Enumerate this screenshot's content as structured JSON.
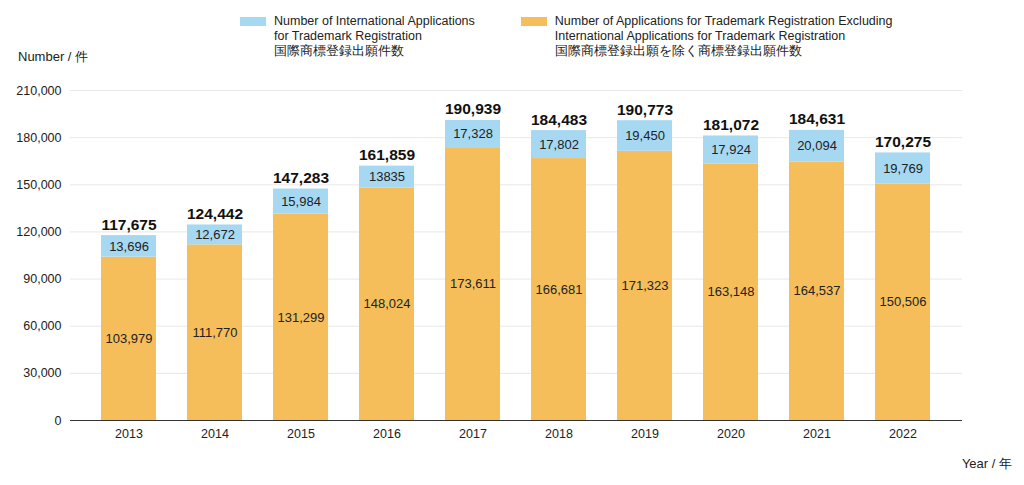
{
  "chart_data": {
    "type": "bar",
    "stacked": true,
    "data_labels": true,
    "grid": true,
    "ylabel": "Number / 件",
    "xlabel": "Year / 年",
    "categories": [
      "2013",
      "2014",
      "2015",
      "2016",
      "2017",
      "2018",
      "2019",
      "2020",
      "2021",
      "2022"
    ],
    "series": [
      {
        "name": "Number of International Applications\nfor Trademark Registration\n国際商標登録出願件数",
        "color": "#a6d8f2",
        "values": [
          13696,
          12672,
          15984,
          13835,
          17328,
          17802,
          19450,
          17924,
          20094,
          19769
        ],
        "value_labels": [
          "13,696",
          "12,672",
          "15,984",
          "13835",
          "17,328",
          "17,802",
          "19,450",
          "17,924",
          "20,094",
          "19,769"
        ]
      },
      {
        "name": "Number of Applications for Trademark Registration Excluding\nInternational Applications for Trademark Registration\n国際商標登録出願を除く商標登録出願件数",
        "color": "#f6be5a",
        "values": [
          103979,
          111770,
          131299,
          148024,
          173611,
          166681,
          171323,
          163148,
          164537,
          150506
        ],
        "value_labels": [
          "103,979",
          "111,770",
          "131,299",
          "148,024",
          "173,611",
          "166,681",
          "171,323",
          "163,148",
          "164,537",
          "150,506"
        ]
      }
    ],
    "totals": [
      117675,
      124442,
      147283,
      161859,
      190939,
      184483,
      190773,
      181072,
      184631,
      170275
    ],
    "total_labels": [
      "117,675",
      "124,442",
      "147,283",
      "161,859",
      "190,939",
      "184,483",
      "190,773",
      "181,072",
      "184,631",
      "170,275"
    ],
    "ylim": [
      0,
      210000
    ],
    "yticks": [
      0,
      {
        "value": 30000,
        "label": "30,000"
      },
      {
        "value": 60000,
        "label": "60,000"
      },
      {
        "value": 90000,
        "label": "90,000"
      },
      {
        "value": 120000,
        "label": "120,000"
      },
      {
        "value": 150000,
        "label": "150,000"
      },
      {
        "value": 180000,
        "label": "180,000"
      },
      {
        "value": 210000,
        "label": "210,000"
      }
    ]
  }
}
